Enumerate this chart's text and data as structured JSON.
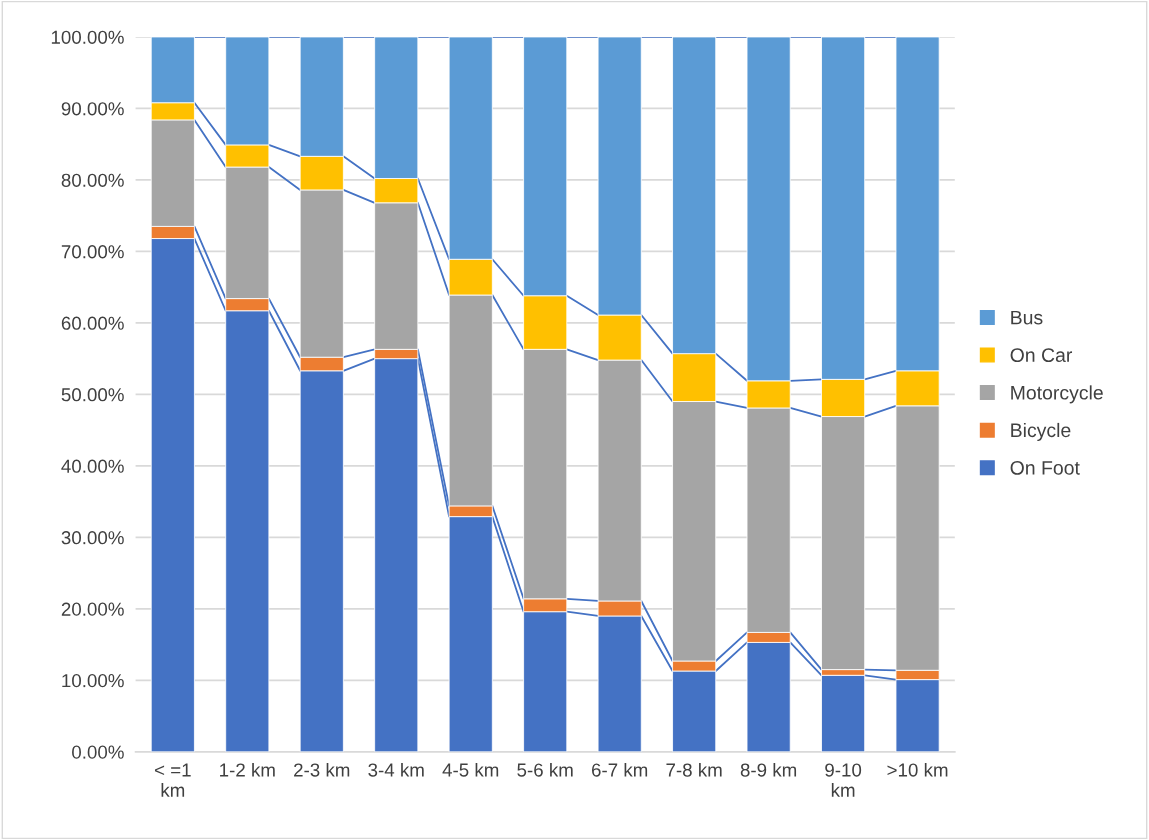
{
  "chart_data": {
    "type": "bar",
    "stacked": true,
    "categories": [
      "< =1 km",
      "1-2 km",
      "2-3 km",
      "3-4 km",
      "4-5 km",
      "5-6 km",
      "6-7 km",
      "7-8 km",
      "8-9 km",
      "9-10 km",
      ">10 km"
    ],
    "series": [
      {
        "name": "On Foot",
        "color": "#4472c4",
        "values": [
          71.8,
          61.7,
          53.3,
          55.0,
          32.9,
          19.6,
          19.0,
          11.3,
          15.3,
          10.7,
          10.1
        ]
      },
      {
        "name": "Bicycle",
        "color": "#ed7d31",
        "values": [
          1.7,
          1.7,
          1.9,
          1.3,
          1.5,
          1.8,
          2.1,
          1.4,
          1.4,
          0.8,
          1.3
        ]
      },
      {
        "name": "Motorcycle",
        "color": "#a5a5a5",
        "values": [
          14.9,
          18.4,
          23.4,
          20.5,
          29.5,
          34.9,
          33.7,
          36.3,
          31.4,
          35.4,
          37.0
        ]
      },
      {
        "name": "On Car",
        "color": "#ffc000",
        "values": [
          2.4,
          3.1,
          4.7,
          3.4,
          5.0,
          7.5,
          6.3,
          6.7,
          3.8,
          5.2,
          4.9
        ]
      },
      {
        "name": "Bus",
        "color": "#5b9bd5",
        "values": [
          9.2,
          15.1,
          16.7,
          19.8,
          31.1,
          36.2,
          38.9,
          44.3,
          48.1,
          47.9,
          46.7
        ]
      }
    ],
    "ylim": [
      0,
      100
    ],
    "yticks": [
      {
        "value": 0,
        "label": "0.00%"
      },
      {
        "value": 10,
        "label": "10.00%"
      },
      {
        "value": 20,
        "label": "20.00%"
      },
      {
        "value": 30,
        "label": "30.00%"
      },
      {
        "value": 40,
        "label": "40.00%"
      },
      {
        "value": 50,
        "label": "50.00%"
      },
      {
        "value": 60,
        "label": "60.00%"
      },
      {
        "value": 70,
        "label": "70.00%"
      },
      {
        "value": 80,
        "label": "80.00%"
      },
      {
        "value": 90,
        "label": "90.00%"
      },
      {
        "value": 100,
        "label": "100.00%"
      }
    ],
    "grid": "y",
    "legend": "right"
  }
}
